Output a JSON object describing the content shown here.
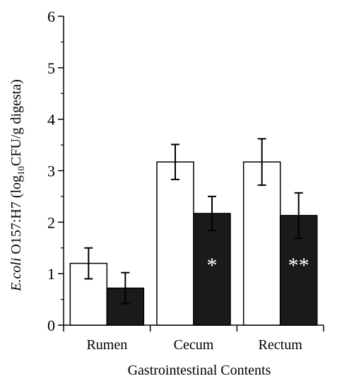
{
  "chart_data": {
    "type": "bar",
    "categories": [
      "Rumen",
      "Cecum",
      "Rectum"
    ],
    "series": [
      {
        "fill": "#ffffff",
        "values": [
          1.2,
          3.17,
          3.17
        ],
        "error": [
          0.3,
          0.34,
          0.45
        ]
      },
      {
        "fill": "#1a1a1a",
        "values": [
          0.72,
          2.17,
          2.13
        ],
        "error": [
          0.3,
          0.33,
          0.44
        ]
      }
    ],
    "significance": [
      "",
      "*",
      "**"
    ],
    "xlabel": "Gastrointestinal Contents",
    "ylabel_italic": "E.coli",
    "ylabel_main": " O157:H7 (log",
    "ylabel_sub": "10",
    "ylabel_tail": "CFU/g digesta)",
    "yticks": [
      "0",
      "1",
      "2",
      "3",
      "4",
      "5",
      "6"
    ],
    "ylim": [
      0,
      6
    ],
    "grid": false
  }
}
